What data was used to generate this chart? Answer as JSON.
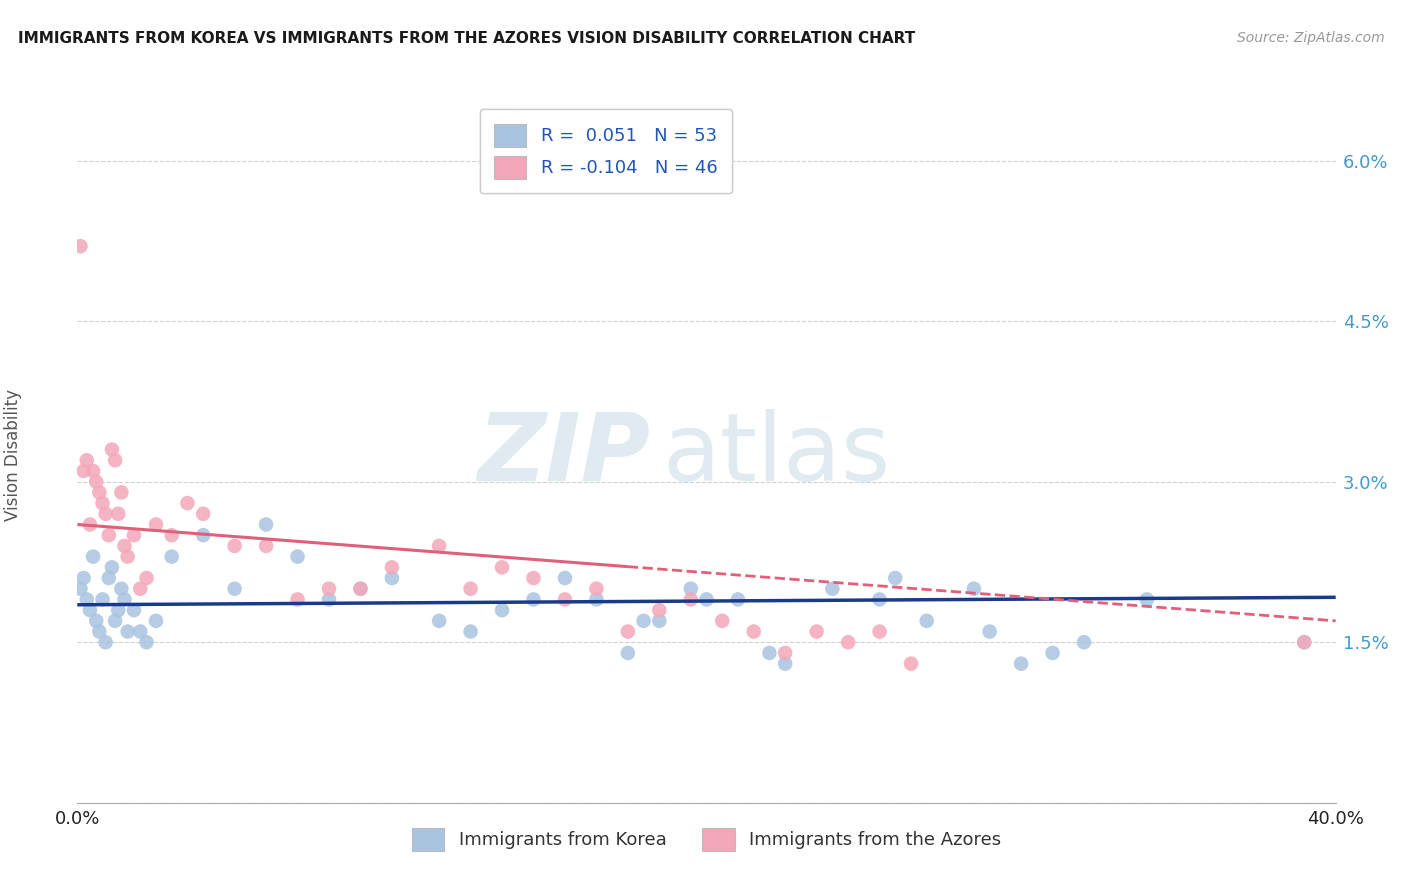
{
  "title": "IMMIGRANTS FROM KOREA VS IMMIGRANTS FROM THE AZORES VISION DISABILITY CORRELATION CHART",
  "source": "Source: ZipAtlas.com",
  "ylabel": "Vision Disability",
  "yticks": [
    0.0,
    0.015,
    0.03,
    0.045,
    0.06
  ],
  "ytick_labels": [
    "",
    "1.5%",
    "3.0%",
    "4.5%",
    "6.0%"
  ],
  "xlim": [
    0.0,
    0.4
  ],
  "ylim": [
    0.0,
    0.065
  ],
  "legend_r_korea": "0.051",
  "legend_n_korea": "53",
  "legend_r_azores": "-0.104",
  "legend_n_azores": "46",
  "legend_label_korea": "Immigrants from Korea",
  "legend_label_azores": "Immigrants from the Azores",
  "korea_color": "#a8c4e0",
  "azores_color": "#f4a7b9",
  "korea_line_color": "#1a3a8a",
  "azores_line_color": "#e0607a",
  "korea_x": [
    0.001,
    0.002,
    0.003,
    0.004,
    0.005,
    0.006,
    0.007,
    0.008,
    0.009,
    0.01,
    0.011,
    0.012,
    0.013,
    0.014,
    0.015,
    0.016,
    0.018,
    0.02,
    0.022,
    0.025,
    0.03,
    0.04,
    0.05,
    0.06,
    0.07,
    0.08,
    0.09,
    0.1,
    0.115,
    0.125,
    0.135,
    0.145,
    0.155,
    0.165,
    0.175,
    0.185,
    0.195,
    0.21,
    0.225,
    0.24,
    0.255,
    0.27,
    0.285,
    0.3,
    0.32,
    0.34,
    0.29,
    0.31,
    0.26,
    0.22,
    0.2,
    0.18,
    0.39
  ],
  "korea_y": [
    0.02,
    0.021,
    0.019,
    0.018,
    0.023,
    0.017,
    0.016,
    0.019,
    0.015,
    0.021,
    0.022,
    0.017,
    0.018,
    0.02,
    0.019,
    0.016,
    0.018,
    0.016,
    0.015,
    0.017,
    0.023,
    0.025,
    0.02,
    0.026,
    0.023,
    0.019,
    0.02,
    0.021,
    0.017,
    0.016,
    0.018,
    0.019,
    0.021,
    0.019,
    0.014,
    0.017,
    0.02,
    0.019,
    0.013,
    0.02,
    0.019,
    0.017,
    0.02,
    0.013,
    0.015,
    0.019,
    0.016,
    0.014,
    0.021,
    0.014,
    0.019,
    0.017,
    0.015
  ],
  "azores_x": [
    0.001,
    0.002,
    0.003,
    0.004,
    0.005,
    0.006,
    0.007,
    0.008,
    0.009,
    0.01,
    0.011,
    0.012,
    0.013,
    0.014,
    0.015,
    0.016,
    0.018,
    0.02,
    0.022,
    0.025,
    0.03,
    0.035,
    0.04,
    0.05,
    0.06,
    0.07,
    0.08,
    0.09,
    0.1,
    0.115,
    0.125,
    0.135,
    0.145,
    0.155,
    0.165,
    0.175,
    0.185,
    0.195,
    0.205,
    0.215,
    0.225,
    0.235,
    0.245,
    0.255,
    0.265,
    0.39
  ],
  "azores_y": [
    0.052,
    0.031,
    0.032,
    0.026,
    0.031,
    0.03,
    0.029,
    0.028,
    0.027,
    0.025,
    0.033,
    0.032,
    0.027,
    0.029,
    0.024,
    0.023,
    0.025,
    0.02,
    0.021,
    0.026,
    0.025,
    0.028,
    0.027,
    0.024,
    0.024,
    0.019,
    0.02,
    0.02,
    0.022,
    0.024,
    0.02,
    0.022,
    0.021,
    0.019,
    0.02,
    0.016,
    0.018,
    0.019,
    0.017,
    0.016,
    0.014,
    0.016,
    0.015,
    0.016,
    0.013,
    0.015
  ],
  "korea_trendline": [
    0.0185,
    0.0192
  ],
  "azores_trendline": [
    0.026,
    0.017
  ]
}
